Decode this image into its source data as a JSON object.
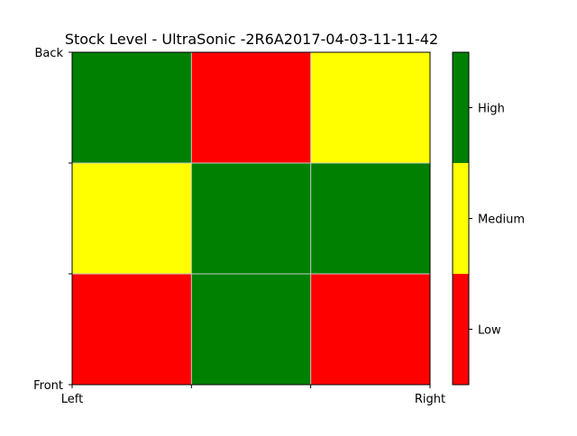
{
  "chart_data": {
    "type": "heatmap",
    "title": "Stock Level - UltraSonic -2R6A2017-04-03-11-11-42",
    "x_tick_labels": [
      "Left",
      "",
      "",
      "Right"
    ],
    "y_tick_labels": [
      "Front",
      "",
      "",
      "Back"
    ],
    "rows_front_to_back": [
      [
        "Low",
        "High",
        "Low"
      ],
      [
        "Medium",
        "High",
        "High"
      ],
      [
        "High",
        "Low",
        "Medium"
      ]
    ],
    "levels": [
      "Low",
      "Medium",
      "High"
    ],
    "level_colors": {
      "Low": "#ff0000",
      "Medium": "#ffff00",
      "High": "#008000"
    },
    "colorbar_labels": [
      "Low",
      "Medium",
      "High"
    ],
    "grid": true,
    "legend": "colorbar-right"
  }
}
